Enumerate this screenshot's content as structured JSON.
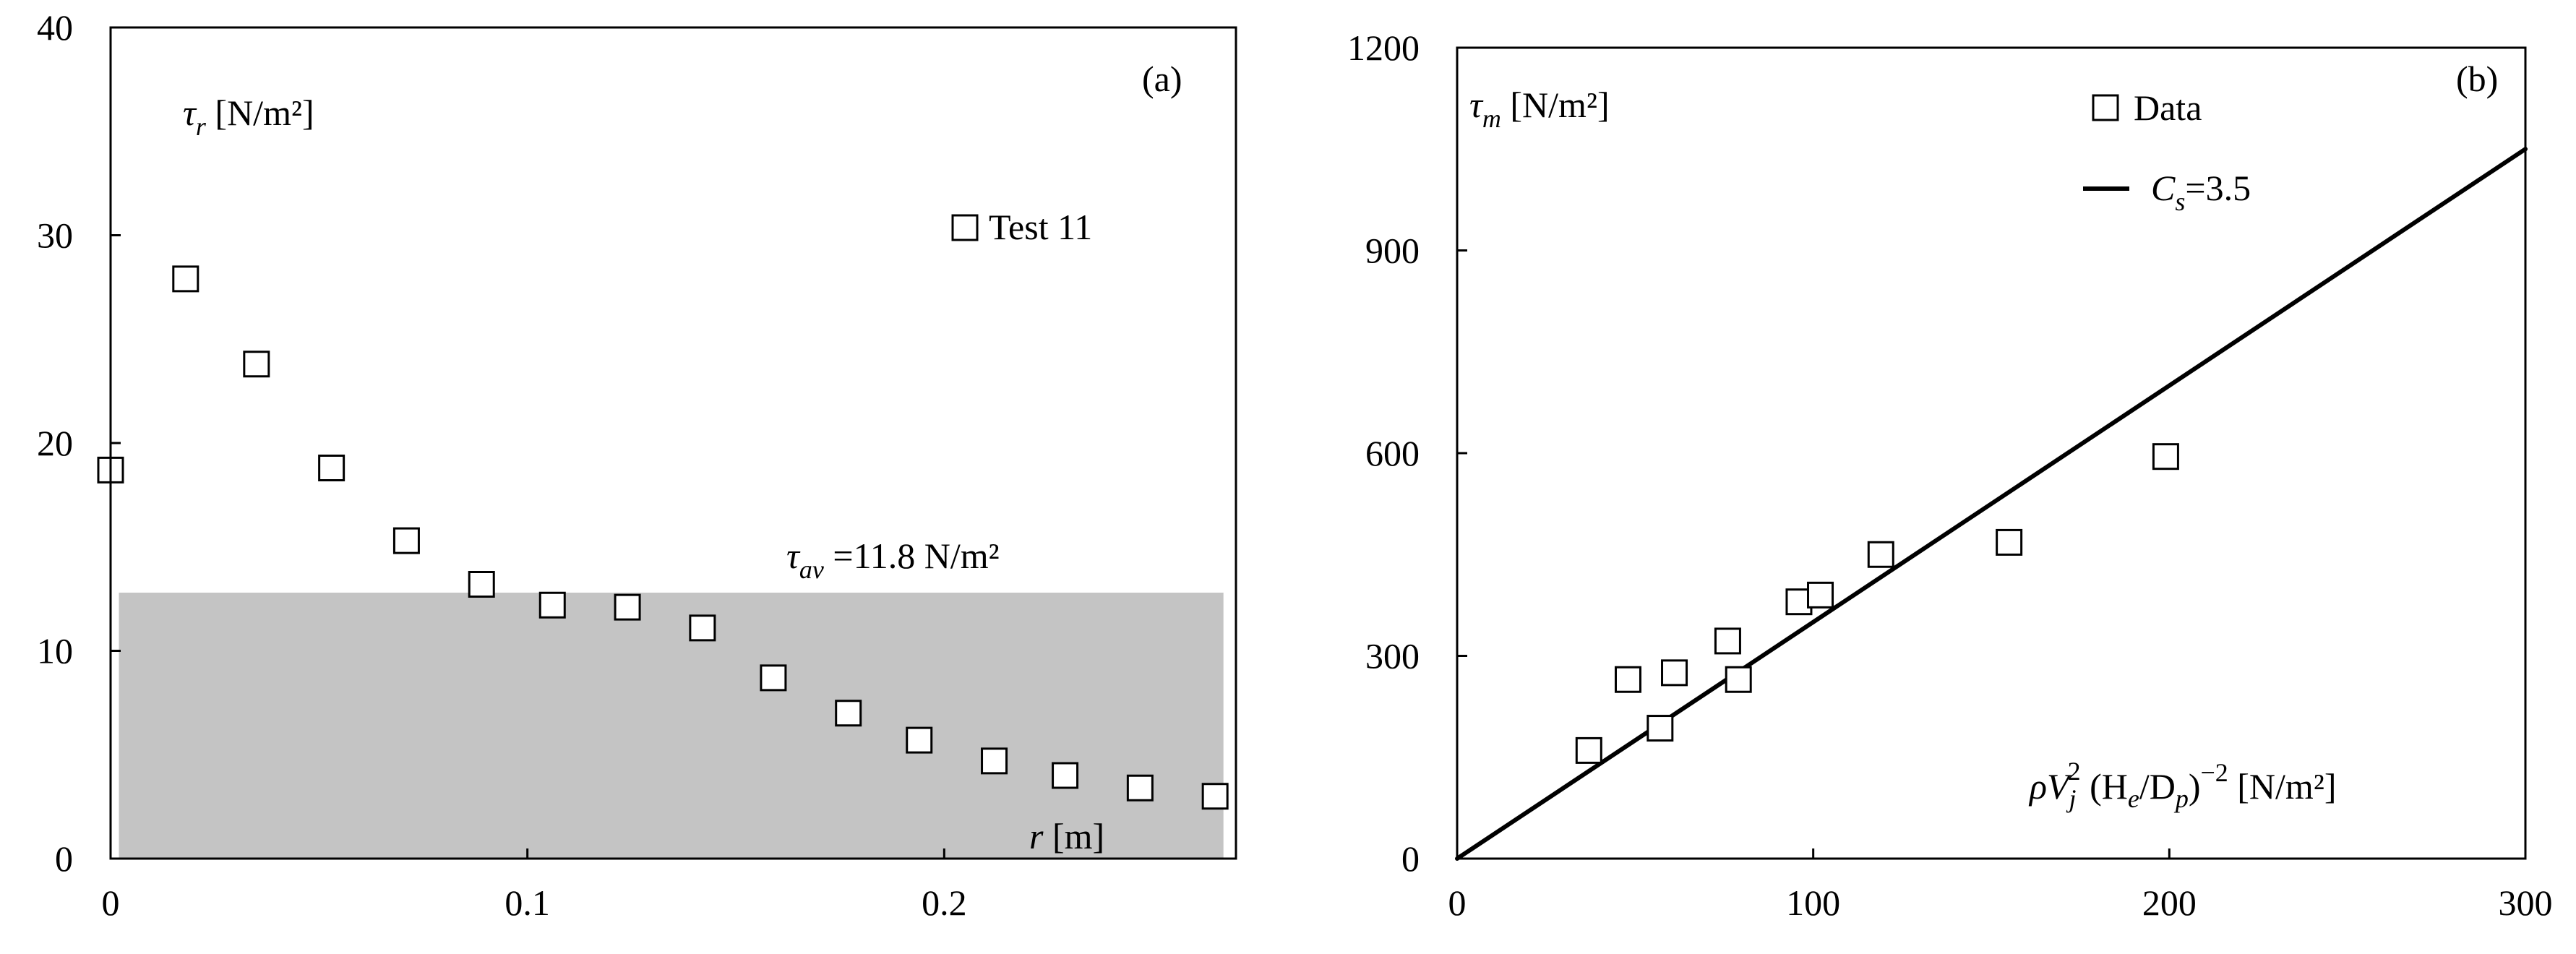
{
  "chart_data": [
    {
      "id": "a",
      "type": "scatter",
      "panel_label": "(a)",
      "ylabel": "τ",
      "ylabel_sub": "r",
      "ylabel_unit": " [N/m²]",
      "xlabel": "r",
      "xlabel_unit": " [m]",
      "legend": "Test 11",
      "xlim": [
        0,
        0.27
      ],
      "ylim": [
        0,
        40
      ],
      "xticks": [
        "0",
        "0.1",
        "0.2"
      ],
      "xtick_values": [
        0,
        0.1,
        0.2
      ],
      "yticks": [
        "0",
        "10",
        "20",
        "30",
        "40"
      ],
      "ytick_values": [
        0,
        10,
        20,
        30,
        40
      ],
      "series": [
        {
          "name": "Test 11",
          "x": [
            0,
            0.018,
            0.035,
            0.053,
            0.071,
            0.089,
            0.106,
            0.124,
            0.142,
            0.159,
            0.177,
            0.194,
            0.212,
            0.229,
            0.247,
            0.265
          ],
          "y": [
            18.7,
            27.9,
            23.8,
            18.8,
            15.3,
            13.2,
            12.2,
            12.1,
            11.1,
            8.7,
            7.0,
            5.7,
            4.7,
            4.0,
            3.4,
            3.0
          ]
        }
      ],
      "shaded_region": {
        "x": [
          0.002,
          0.267
        ],
        "y": [
          0,
          12.8
        ],
        "color": "#c4c4c4"
      },
      "annotation": {
        "symbol": "τ",
        "sub": "av",
        "text": " =11.8 N/m²"
      },
      "grid": false
    },
    {
      "id": "b",
      "type": "scatter",
      "panel_label": "(b)",
      "ylabel": "τ",
      "ylabel_sub": "m",
      "ylabel_unit": " [N/m²]",
      "xlabel_parts": {
        "rho": "ρV",
        "vsub": "j",
        "vsup": "2",
        "mid": " (H",
        "hsub": "e",
        "slash": "/D",
        "dsub": "p",
        "close": ")",
        "exp": "−2",
        "unit": "  [N/m²]"
      },
      "xlim": [
        0,
        300
      ],
      "ylim": [
        0,
        1200
      ],
      "xticks": [
        "0",
        "100",
        "200",
        "300"
      ],
      "xtick_values": [
        0,
        100,
        200,
        300
      ],
      "yticks": [
        "0",
        "300",
        "600",
        "900",
        "1200"
      ],
      "ytick_values": [
        0,
        300,
        600,
        900,
        1200
      ],
      "legend": [
        {
          "label": "Data",
          "marker": "square"
        },
        {
          "label_symbol": "C",
          "label_sub": "s",
          "label_text": "=3.5",
          "marker": "line"
        }
      ],
      "series": [
        {
          "name": "Data",
          "x": [
            37,
            48,
            57,
            61,
            76,
            79,
            96,
            102,
            119,
            155,
            199
          ],
          "y": [
            160,
            265,
            193,
            275,
            322,
            265,
            380,
            390,
            450,
            468,
            595
          ]
        },
        {
          "name": "Cs=3.5",
          "type": "line",
          "x": [
            0,
            300
          ],
          "y": [
            0,
            1050
          ]
        }
      ],
      "grid": false
    }
  ]
}
